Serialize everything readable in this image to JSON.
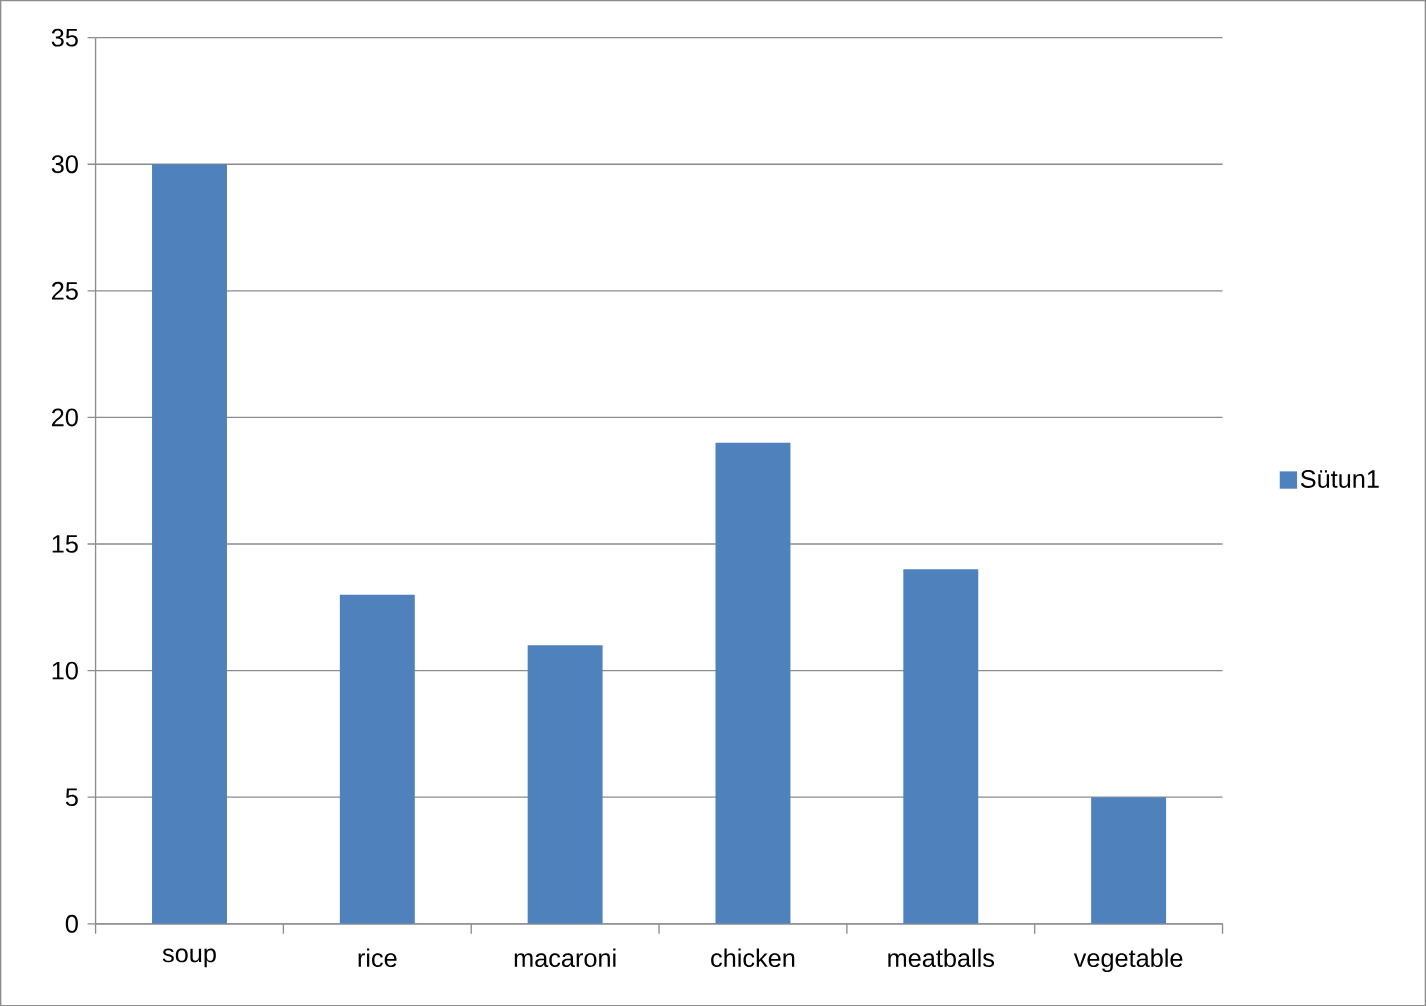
{
  "chart_data": {
    "type": "bar",
    "categories": [
      "soup",
      "rice",
      "macaroni",
      "chicken",
      "meatballs",
      "vegetable"
    ],
    "series": [
      {
        "name": "Sütun1",
        "color": "#4f81bd",
        "values": [
          30,
          13,
          11,
          19,
          14,
          5
        ]
      }
    ],
    "ylim": [
      0,
      35
    ],
    "yticks": [
      0,
      5,
      10,
      15,
      20,
      25,
      30,
      35
    ],
    "grid": "y",
    "legend": "right"
  }
}
